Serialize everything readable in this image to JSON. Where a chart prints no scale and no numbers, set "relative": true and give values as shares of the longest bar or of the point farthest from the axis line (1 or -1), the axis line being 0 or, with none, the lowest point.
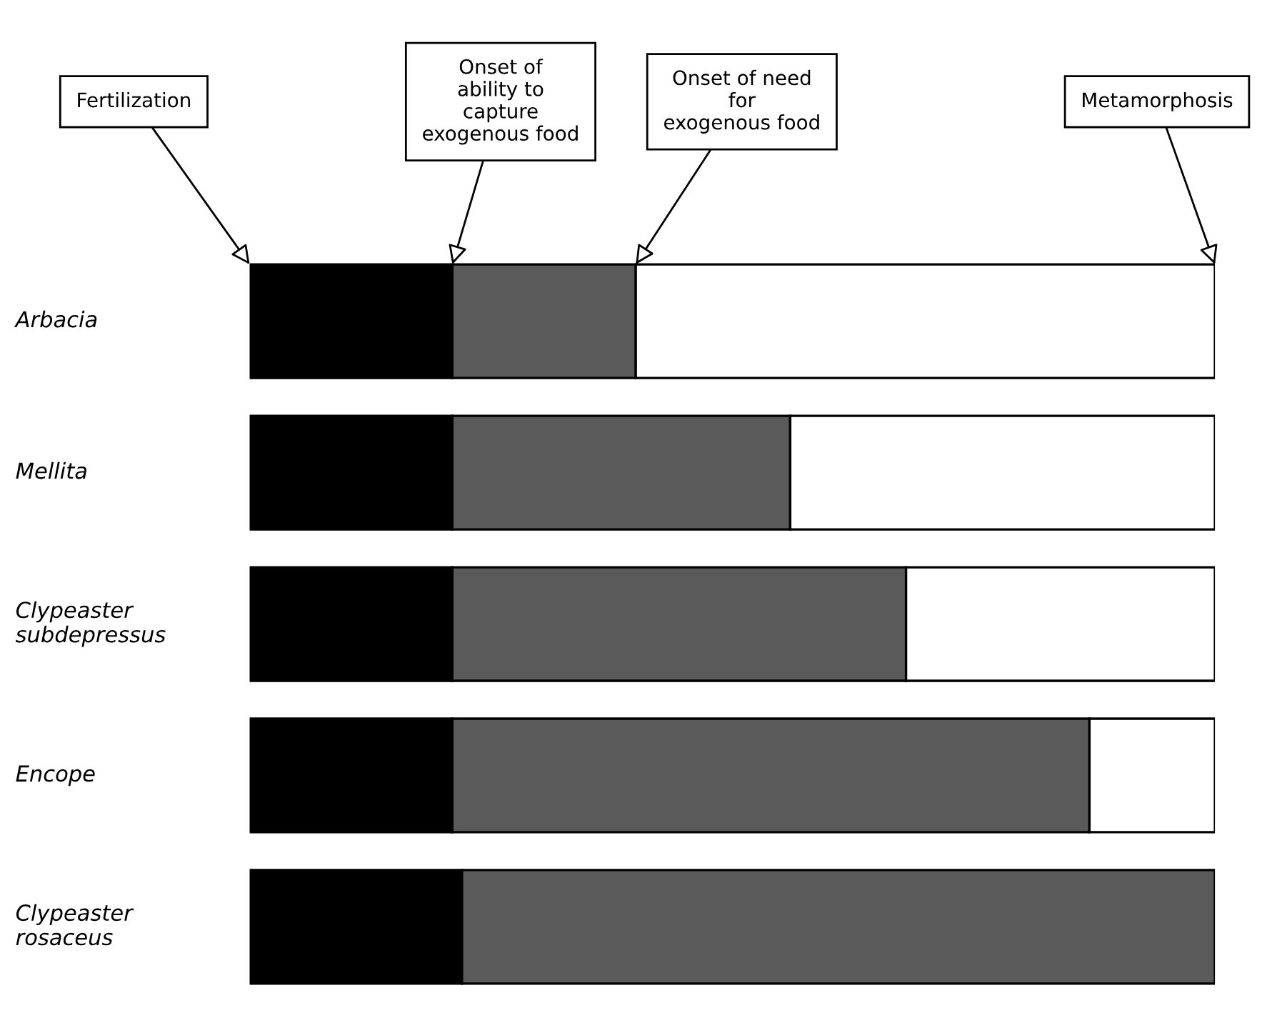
{
  "chart_data": {
    "type": "bar",
    "orientation": "horizontal",
    "stacked": true,
    "relative": true,
    "categories": [
      "Arbacia",
      "Mellita",
      "Clypeaster\nsubdepressus",
      "Encope",
      "Clypeaster\nrosaceus"
    ],
    "series": [
      {
        "color": "#000000",
        "values": [
          0.21,
          0.21,
          0.21,
          0.21,
          0.22
        ]
      },
      {
        "color": "#5a5a5a",
        "values": [
          0.19,
          0.35,
          0.47,
          0.66,
          0.78
        ]
      },
      {
        "color": "#ffffff",
        "values": [
          0.6,
          0.44,
          0.32,
          0.13,
          null
        ]
      }
    ],
    "annotations": [
      "Fertilization",
      "Onset of\nability to\ncapture\nexogenous food",
      "Onset of need\nfor\nexogenous food",
      "Metamorphosis"
    ]
  }
}
